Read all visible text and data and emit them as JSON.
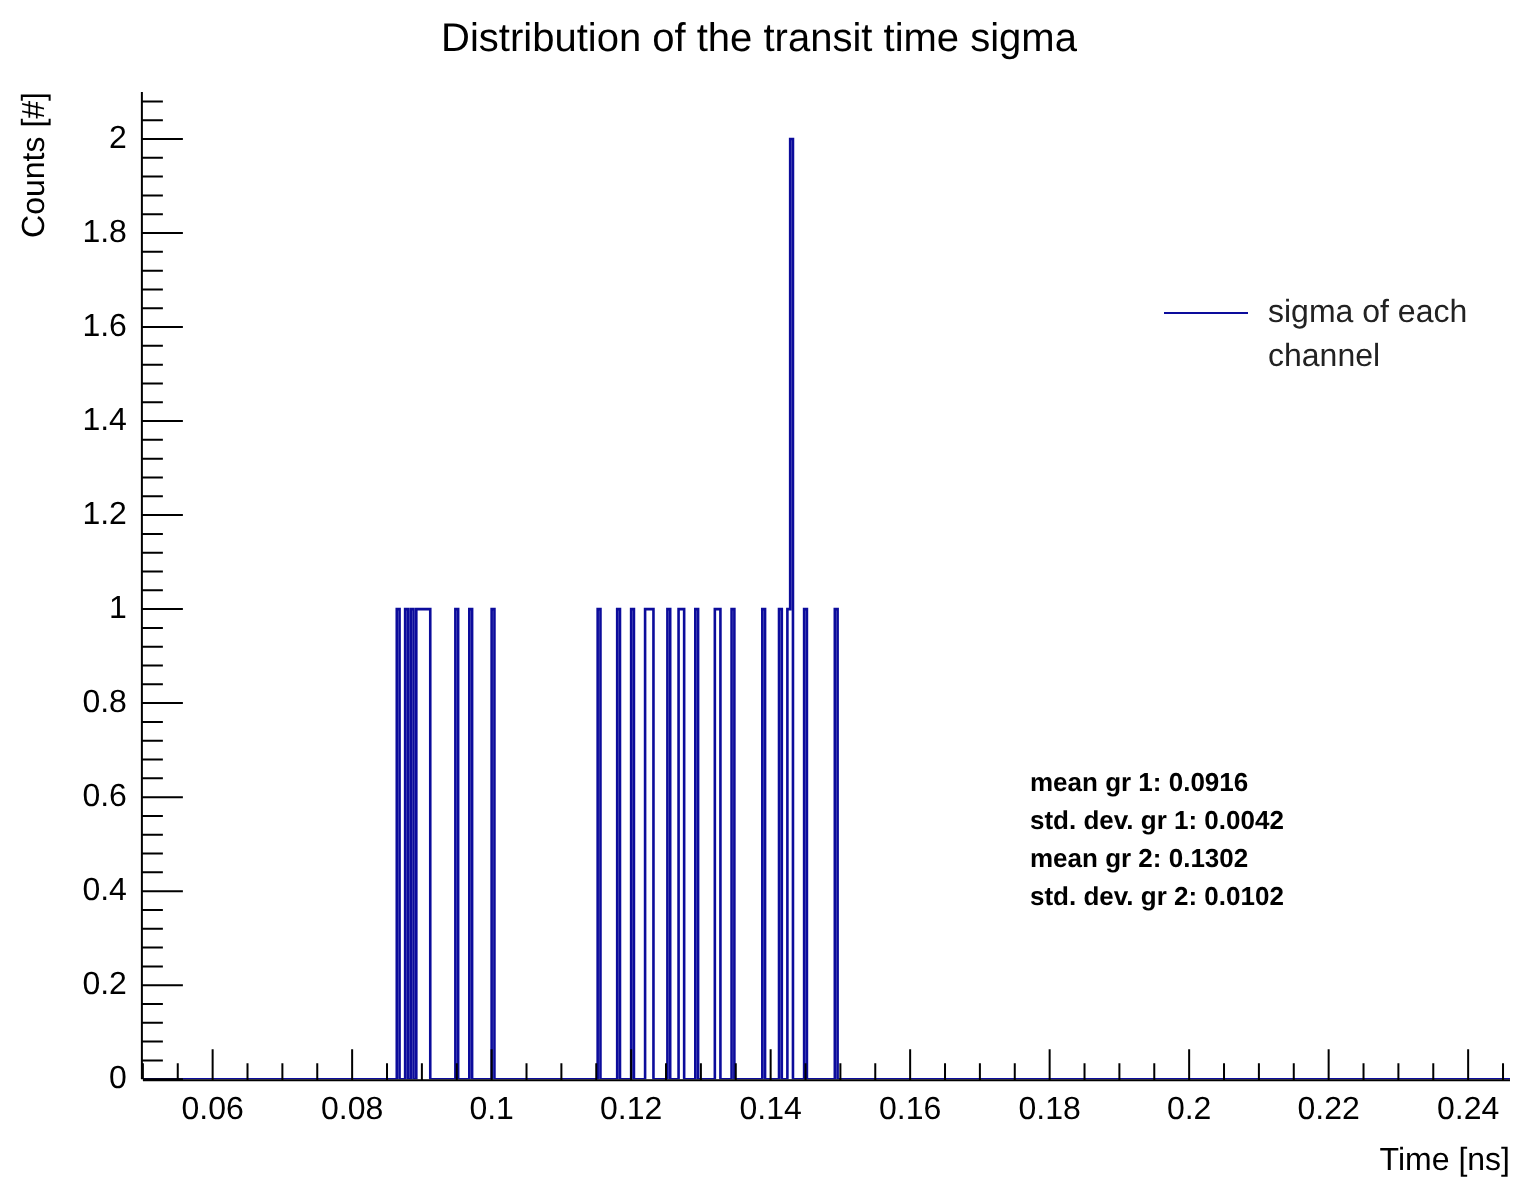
{
  "chart_data": {
    "type": "histogram",
    "title": "Distribution of the transit time sigma",
    "xlabel": "Time [ns]",
    "ylabel": "Counts [#]",
    "bins": [
      0.05,
      0.0864,
      0.0868,
      0.0876,
      0.088,
      0.0884,
      0.0888,
      0.0892,
      0.0896,
      0.09,
      0.0904,
      0.0908,
      0.0912,
      0.0948,
      0.0952,
      0.0968,
      0.0972,
      0.1,
      0.1004,
      0.1152,
      0.1156,
      0.118,
      0.1184,
      0.12,
      0.1204,
      0.122,
      0.1224,
      0.1228,
      0.1232,
      0.1252,
      0.1256,
      0.1268,
      0.1272,
      0.1276,
      0.1292,
      0.1296,
      0.132,
      0.1324,
      0.1328,
      0.1344,
      0.1348,
      0.1388,
      0.1392,
      0.1412,
      0.1416,
      0.1424,
      0.1428,
      0.1432,
      0.1448,
      0.1452,
      0.1492,
      0.1496,
      0.246
    ],
    "series": [
      {
        "name": "sigma of each channel",
        "color": "#0c0c9c",
        "values": [
          0,
          1,
          0,
          1,
          0,
          1,
          0,
          1,
          1,
          1,
          1,
          1,
          0,
          1,
          0,
          1,
          0,
          1,
          0,
          1,
          0,
          1,
          0,
          1,
          0,
          1,
          1,
          1,
          0,
          1,
          0,
          1,
          1,
          0,
          1,
          0,
          1,
          1,
          0,
          1,
          0,
          1,
          0,
          1,
          0,
          1,
          2,
          0,
          1,
          0,
          1,
          0
        ]
      }
    ],
    "xlim": [
      0.05,
      0.246
    ],
    "xticks": [
      0.06,
      0.08,
      0.1,
      0.12,
      0.14,
      0.16,
      0.18,
      0.2,
      0.22,
      0.24
    ],
    "ylim": [
      0,
      2.1
    ],
    "yticks": [
      0,
      0.2,
      0.4,
      0.6,
      0.8,
      1,
      1.2,
      1.4,
      1.6,
      1.8,
      2
    ],
    "grid": false,
    "legend": "top right",
    "annotations": [
      "mean gr 1: 0.0916",
      "std. dev. gr 1: 0.0042",
      "mean gr 2: 0.1302",
      "std. dev. gr 2: 0.0102"
    ]
  }
}
